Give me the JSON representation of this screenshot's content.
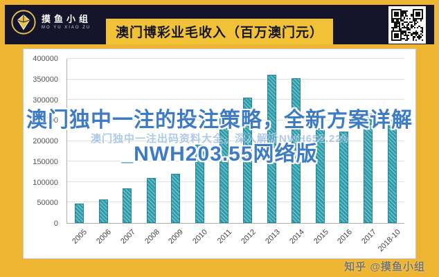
{
  "header": {
    "logo_title": "摸鱼小组",
    "logo_subtitle": "MO YU XIAO ZU",
    "title": "澳门博彩业毛收入（百万澳门元）"
  },
  "chart_data": {
    "type": "bar",
    "title": "澳门博彩业毛收入（百万澳门元）",
    "categories": [
      "2005",
      "2006",
      "2007",
      "2008",
      "2009",
      "2010",
      "2011",
      "2012",
      "2013",
      "2014",
      "2015",
      "2016",
      "2017",
      "2018-10"
    ],
    "values": [
      47000,
      57500,
      84000,
      110000,
      120000,
      190000,
      269000,
      305000,
      361000,
      352000,
      231000,
      223000,
      266000,
      251000
    ],
    "xlabel": "",
    "ylabel": "",
    "ylim": [
      0,
      400000
    ],
    "yticks": [
      0,
      50000,
      100000,
      150000,
      200000,
      250000,
      300000,
      350000,
      400000
    ],
    "grid": true,
    "legend": false,
    "bar_color": "#2e9dab"
  },
  "overlay": {
    "line1": "澳门独中一注的投注策略，全新方案详解",
    "line2": "_NWH203.55网络版",
    "faint_text": "澳门独中一注出码资料大全，深入解析NWH652.220"
  },
  "watermark": "知乎 @摸鱼小组",
  "colors": {
    "frame": "#edb532",
    "header": "#14152b",
    "title_box": "#f2c236",
    "bar": "#2e9dab",
    "overlay_text": "#3d7cc3"
  }
}
